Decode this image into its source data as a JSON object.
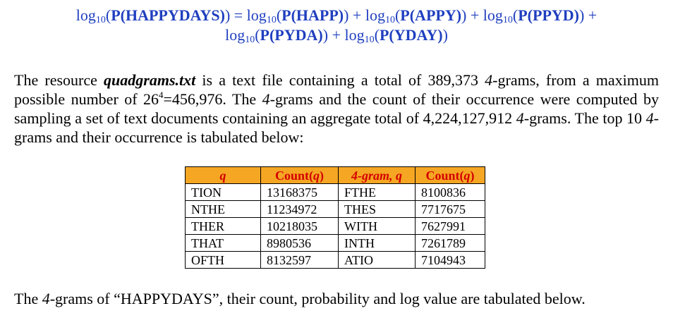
{
  "equation": {
    "line1": {
      "t0": "log",
      "s0": "10",
      "t1": "(",
      "b1": "P(HAPPYDAYS)",
      "t2": ") = log",
      "s1": "10",
      "t3": "(",
      "b2": "P(HAPP)",
      "t4": ") + log",
      "s2": "10",
      "t5": "(",
      "b3": "P(APPY)",
      "t6": ") + log",
      "s3": "10",
      "t7": "(",
      "b4": "P(PPYD)",
      "t8": ") +"
    },
    "line2": {
      "t0": "log",
      "s0": "10",
      "t1": "(",
      "b1": "P(PYDA)",
      "t2": ") + log",
      "s1": "10",
      "t3": "(",
      "b2": "P(YDAY)",
      "t4": ")"
    }
  },
  "paragraph": {
    "p1": "The resource ",
    "filename": "quadgrams.txt",
    "p2": " is a text file containing a total of 389,373 ",
    "n1": "4",
    "p3": "-grams, from a maximum possible number of 26",
    "exp": "4",
    "p4": "=456,976. The ",
    "n2": "4",
    "p5": "-grams and the count of their occurrence were computed by sampling a set of text documents containing an aggregate total of 4,224,127,912 ",
    "n3": "4",
    "p6": "-grams. The top 10 ",
    "n4": "4",
    "p7": "-grams and their occurrence is tabulated below:"
  },
  "table": {
    "headers": [
      {
        "main": "q",
        "paren": ""
      },
      {
        "main": "Count(",
        "paren": "q",
        "close": ")"
      },
      {
        "main": "4-gram, ",
        "paren": "q",
        "close": ""
      },
      {
        "main": "Count(",
        "paren": "q",
        "close": ")"
      }
    ],
    "rows": [
      [
        "TION",
        "13168375",
        "FTHE",
        "8100836"
      ],
      [
        "NTHE",
        "11234972",
        "THES",
        "7717675"
      ],
      [
        "THER",
        "10218035",
        "WITH",
        "7627991"
      ],
      [
        "THAT",
        "8980536",
        "INTH",
        "7261789"
      ],
      [
        "OFTH",
        "8132597",
        "ATIO",
        "7104943"
      ]
    ],
    "header_bg": "#f5a623",
    "header_text": "#d40000"
  },
  "closing": {
    "c1": "The ",
    "n1": "4",
    "c2": "-grams of “HAPPYDAYS”, their count, probability and log value are tabulated below."
  },
  "colors": {
    "equation": "#1f3fbf"
  }
}
